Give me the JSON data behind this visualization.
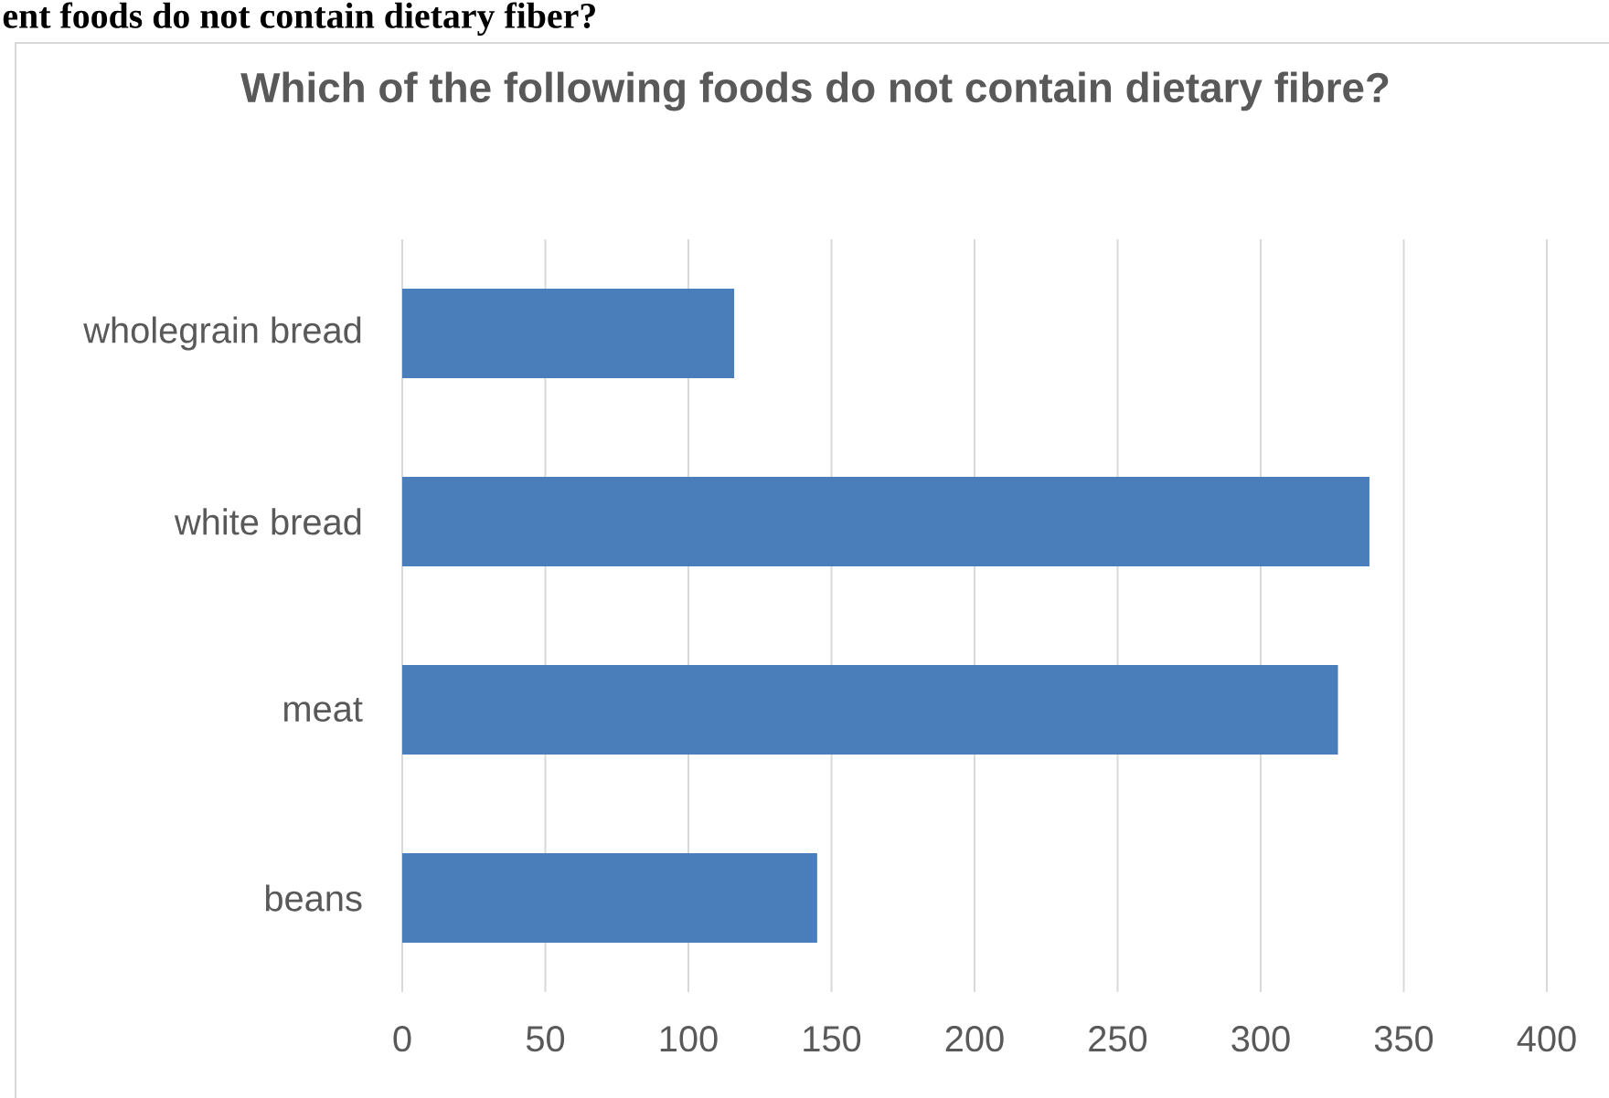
{
  "chart_data": {
    "type": "bar",
    "orientation": "horizontal",
    "title": "Which of the following foods do not contain dietary fibre?",
    "annotations": [
      "ent foods do not contain dietary fiber?"
    ],
    "categories": [
      "wholegrain bread",
      "white bread",
      "meat",
      "beans"
    ],
    "values": [
      116,
      338,
      327,
      145
    ],
    "color": "#4a7ebb",
    "xlim": [
      0,
      400
    ],
    "xticks": [
      0,
      50,
      100,
      150,
      200,
      250,
      300,
      350,
      400
    ],
    "grid": "x"
  }
}
